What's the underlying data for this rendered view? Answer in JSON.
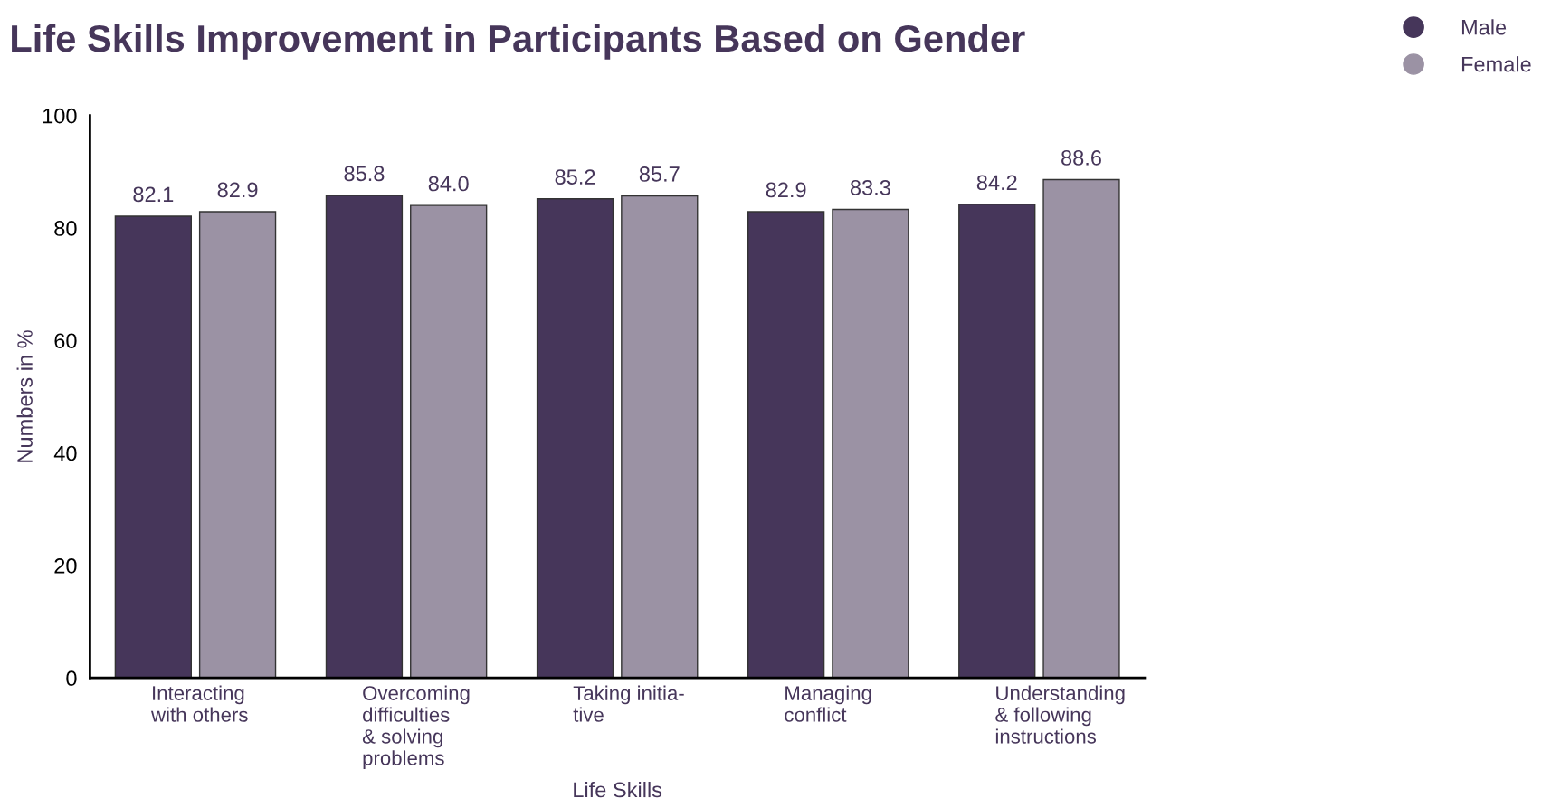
{
  "chart_data": {
    "type": "bar",
    "title": "Life Skills Improvement in Participants Based on Gender",
    "xlabel": "Life Skills",
    "ylabel": "Numbers in %",
    "categories": [
      "Interacting\nwith others",
      "Overcoming\ndifficulties\n& solving\nproblems",
      "Taking initia-\ntive",
      "Managing\nconflict",
      "Understanding\n& following\ninstructions"
    ],
    "series": [
      {
        "name": "Male",
        "color": "#46365a",
        "values": [
          82.1,
          85.8,
          85.2,
          82.9,
          84.2
        ],
        "value_labels": [
          "82.1",
          "85.8",
          "85.2",
          "82.9",
          "84.2"
        ]
      },
      {
        "name": "Female",
        "color": "#9b92a4",
        "values": [
          82.9,
          84.0,
          85.7,
          83.3,
          88.6
        ],
        "value_labels": [
          "82.9",
          "84.0",
          "85.7",
          "83.3",
          "88.6"
        ]
      }
    ],
    "ylim": [
      0,
      100
    ],
    "yticks": [
      0,
      20,
      40,
      60,
      80,
      100
    ],
    "grid": false,
    "legend": "top right",
    "marker": "circle"
  }
}
